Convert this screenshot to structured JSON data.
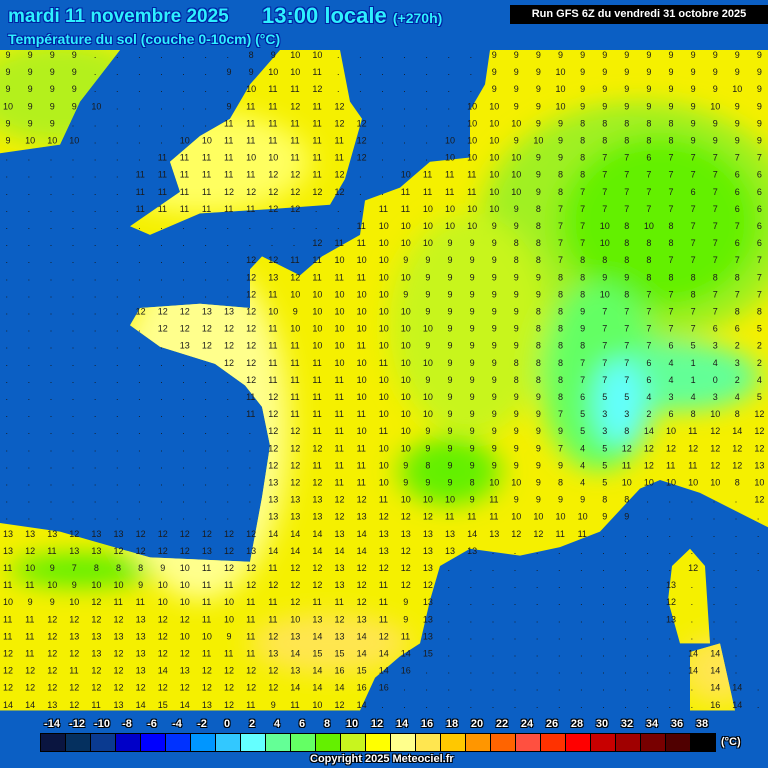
{
  "header": {
    "date": "mardi 11 novembre 2025",
    "time": "13:00 locale",
    "lead": "(+270h)",
    "parameter": "Température du sol (couche 0-10cm) (°C)",
    "run": "Run GFS 6Z du vendredi 31 octobre 2025"
  },
  "colors": {
    "sea": "#0b5fc4",
    "land_mild": "#ffff8c",
    "land_warm": "#f5f000",
    "land_cool": "#b4f01e",
    "land_cold": "#64f000",
    "alps": "#40ffa0"
  },
  "grid_values": [
    "9 9 9 9 . . . . . . . 8 9 10 10 . . . . . . . 9 9 9 9 9 9 9 9 9 9 9 9 9",
    "9 9 9 9 . . . . . . 9 9 10 10 11 . . . . . . . 9 9 9 10 9 9 9 9 9 9 9 9 9",
    "9 9 9 9 . . . . . . . 10 11 11 12 . . . . . . . 9 9 9 10 9 9 9 9 9 9 9 10 9",
    "10 9 9 9 10 . . . . . 9 11 11 12 11 12 . . . . . 10 10 9 9 10 9 9 9 9 9 9 10 9 9",
    "9 9 9 . . . . . . . 11 11 11 11 11 12 12 . . . . 10 10 10 9 9 8 8 8 8 8 9 9 9 9",
    "9 10 10 10 . . . . 10 10 11 11 11 11 11 11 12 . . . 10 10 10 9 10 9 8 8 8 8 8 9 9 9 9",
    ". . . . . . . 11 11 11 11 10 10 11 11 11 12 . . . 10 10 10 10 9 9 8 7 7 6 7 7 7 7 7",
    ". . . . . . 11 11 11 11 11 11 12 12 11 12 . . 10 11 11 11 10 10 9 8 8 7 7 7 7 7 7 6 6",
    ". . . . . . 11 11 11 11 12 12 12 12 12 12 . . 11 11 11 11 10 10 9 8 7 7 7 7 7 6 7 6 6",
    ". . . . . . 11 11 11 11 11 11 12 12 . . . 11 11 10 10 10 10 9 8 7 7 7 7 7 7 7 7 6 6",
    ". . . . . . . . . . . . . . . . 11 10 10 10 10 10 9 9 8 7 7 10 8 10 8 7 7 7 6",
    ". . . . . . . . . . . . . . 12 11 11 10 10 10 9 9 9 8 8 7 7 10 8 8 8 7 7 6 6",
    ". . . . . . . . . . . 12 12 11 11 10 10 10 9 9 9 9 9 8 8 7 8 8 8 8 7 7 7 7 7",
    ". . . . . . . . . . . 12 13 12 11 11 11 10 10 9 9 9 9 9 9 8 8 9 9 8 8 8 8 8 7",
    ". . . . . . . . . . . 12 11 10 10 10 10 10 9 9 9 9 9 9 9 8 8 10 8 7 7 8 7 7 7",
    ". . . . . . 12 12 12 13 13 12 10 9 10 10 10 10 10 9 9 9 9 9 8 8 9 7 7 7 7 7 7 8 8",
    ". . . . . . . 12 12 12 12 12 11 10 10 10 10 10 10 10 9 9 9 9 8 8 9 7 7 7 7 7 6 6 5",
    ". . . . . . . . 13 12 12 12 11 11 10 10 11 10 10 9 9 9 9 9 8 8 8 7 7 7 6 5 3 2 2",
    ". . . . . . . . . . 12 12 11 11 11 10 10 11 10 10 9 9 9 8 8 8 7 7 7 6 4 1 4 3 2",
    ". . . . . . . . . . . 12 11 11 11 11 10 10 10 9 9 9 9 8 8 8 7 7 7 6 4 1 0 2 4",
    ". . . . . . . . . . . 11 12 11 11 11 10 10 10 10 9 9 9 9 9 8 6 5 5 4 3 4 3 4 5",
    ". . . . . . . . . . . 11 12 11 11 11 11 10 10 10 9 9 9 9 9 7 5 3 3 2 6 8 10 8 12",
    ". . . . . . . . . . . . 12 12 11 11 10 11 10 9 9 9 9 9 9 9 5 3 8 14 10 11 12 14 12",
    ". . . . . . . . . . . . 12 12 12 11 11 10 10 9 9 9 9 9 9 7 4 5 12 12 12 12 12 12 12",
    ". . . . . . . . . . . . 12 12 11 11 11 10 9 8 9 9 9 9 9 9 4 5 11 12 11 11 12 12 13",
    ". . . . . . . . . . . . 13 12 12 11 11 10 9 9 9 8 10 10 9 8 4 5 10 10 10 10 10 8 10",
    ". . . . . . . . . . . . 13 13 13 12 12 11 10 10 10 9 11 9 9 9 9 8 8 . . . . . 12",
    ". . . . . . . . . . . . 13 13 13 12 13 12 12 12 11 11 11 10 10 10 10 9 9 . . . . . .",
    "13 13 13 12 13 13 12 12 12 12 12 12 14 14 14 13 14 13 13 13 13 14 13 12 12 11 11 . . . . . . . .",
    "13 12 11 13 13 12 12 12 12 13 12 13 14 14 14 14 14 13 12 13 13 13 . . . . . . . . . . . . .",
    "11 10 9 7 8 8 8 9 10 11 12 12 11 12 12 13 12 12 12 13 . . . . . . . . . . . 12 . . .",
    "11 11 10 9 10 10 9 10 10 11 11 12 12 12 12 13 12 11 12 12 . . . . . . . . . . 13 . . .",
    "10 9 9 10 12 11 11 10 10 11 10 11 11 12 11 11 12 11 9 13 . . . . . . . . . . 12 . . .",
    "11 11 12 12 12 12 13 12 12 11 10 11 11 10 13 12 13 11 9 13 . . . . . . . . . . 13 . . .",
    "11 11 12 13 13 13 13 12 10 10 9 11 12 13 14 13 14 12 11 13 . . . . . . . . . . . . . .",
    "12 11 12 12 13 12 13 12 12 11 11 11 13 14 15 15 14 14 14 15 . . . . . . . . . . . 14 14 .",
    "12 12 12 11 12 12 13 14 13 12 12 12 12 13 14 16 15 14 16 . . . . . . . . . . . . 14 14 .",
    "12 12 12 12 12 12 12 12 12 12 12 12 12 14 14 14 16 16 . . . . . . . . . . . . . . 14 14 .",
    "14 14 13 12 11 13 14 15 14 13 12 11 9 11 10 12 14 . . . . . . . . . . . . . . . 16 14 ."
  ],
  "legend": {
    "labels": [
      "-14",
      "-12",
      "-10",
      "-8",
      "-6",
      "-4",
      "-2",
      "0",
      "2",
      "4",
      "6",
      "8",
      "10",
      "12",
      "14",
      "16",
      "18",
      "20",
      "22",
      "24",
      "26",
      "28",
      "30",
      "32",
      "34",
      "36",
      "38"
    ],
    "colors": [
      "#0a1540",
      "#05305f",
      "#0a3a90",
      "#0000c8",
      "#0000ff",
      "#0032ff",
      "#0096ff",
      "#32c8ff",
      "#64ffff",
      "#64ff96",
      "#64ff64",
      "#64f000",
      "#c8f51e",
      "#ffff00",
      "#ffff8c",
      "#ffe650",
      "#ffc800",
      "#ff9600",
      "#ff6400",
      "#ff5040",
      "#ff3200",
      "#ff0000",
      "#c80000",
      "#a00000",
      "#780000",
      "#500000",
      "#000000"
    ],
    "unit": "(°C)"
  },
  "footer": {
    "copyright": "Copyright 2025 Meteociel.fr"
  }
}
